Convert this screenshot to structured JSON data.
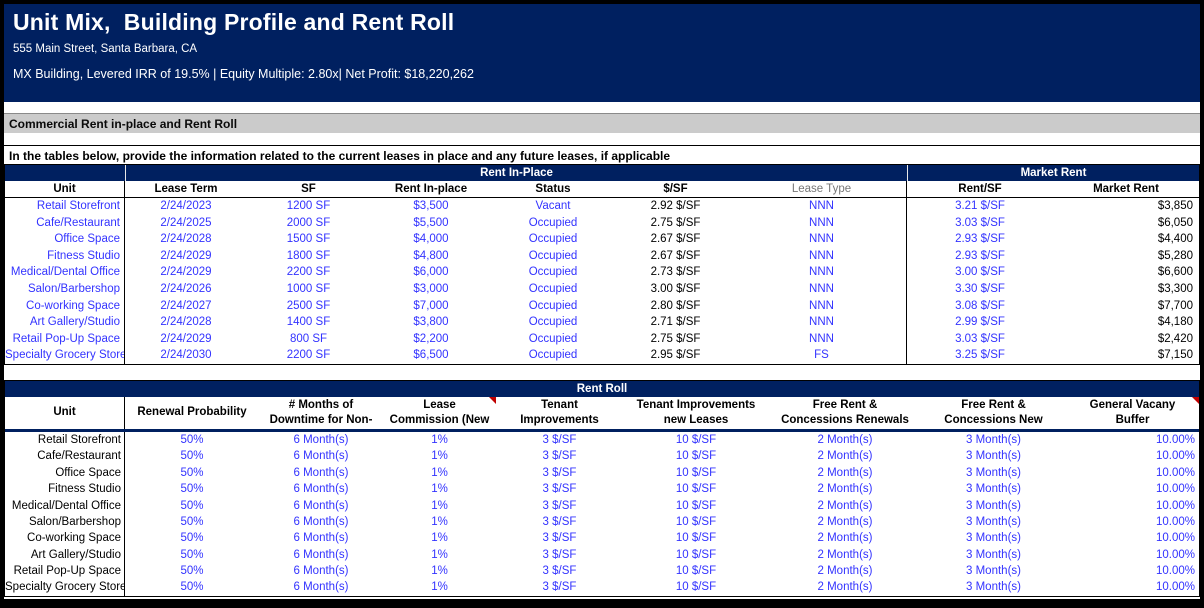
{
  "header": {
    "title": "Unit Mix,  Building Profile and Rent Roll",
    "address": "555 Main Street, Santa Barbara, CA",
    "summary": "MX Building, Levered IRR of 19.5% | Equity Multiple: 2.80x| Net Profit: $18,220,262"
  },
  "section_bar_label": "Commercial Rent in-place and Rent Roll",
  "instruction_text": "In the tables below, provide the information related to the current leases in place and any future leases, if applicable",
  "colors": {
    "navy": "#002060",
    "input_blue": "#3333ff",
    "section_gray": "#cbcbcb",
    "comment_red": "#c00000"
  },
  "rent_in_place_table": {
    "group_headers": [
      "",
      "Rent In-Place",
      "Market Rent"
    ],
    "columns": [
      "Unit",
      "Lease Term",
      "SF",
      "Rent In-place",
      "Status",
      "$/SF",
      "Lease Type",
      "Rent/SF",
      "Market Rent"
    ],
    "rows": [
      [
        "Retail Storefront",
        "2/24/2023",
        "1200 SF",
        "$3,500",
        "Vacant",
        "2.92 $/SF",
        "NNN",
        "3.21 $/SF",
        "$3,850"
      ],
      [
        "Cafe/Restaurant",
        "2/24/2025",
        "2000 SF",
        "$5,500",
        "Occupied",
        "2.75 $/SF",
        "NNN",
        "3.03 $/SF",
        "$6,050"
      ],
      [
        "Office Space",
        "2/24/2028",
        "1500 SF",
        "$4,000",
        "Occupied",
        "2.67 $/SF",
        "NNN",
        "2.93 $/SF",
        "$4,400"
      ],
      [
        "Fitness Studio",
        "2/24/2029",
        "1800 SF",
        "$4,800",
        "Occupied",
        "2.67 $/SF",
        "NNN",
        "2.93 $/SF",
        "$5,280"
      ],
      [
        "Medical/Dental Office",
        "2/24/2029",
        "2200 SF",
        "$6,000",
        "Occupied",
        "2.73 $/SF",
        "NNN",
        "3.00 $/SF",
        "$6,600"
      ],
      [
        "Salon/Barbershop",
        "2/24/2026",
        "1000 SF",
        "$3,000",
        "Occupied",
        "3.00 $/SF",
        "NNN",
        "3.30 $/SF",
        "$3,300"
      ],
      [
        "Co-working Space",
        "2/24/2027",
        "2500 SF",
        "$7,000",
        "Occupied",
        "2.80 $/SF",
        "NNN",
        "3.08 $/SF",
        "$7,700"
      ],
      [
        "Art Gallery/Studio",
        "2/24/2028",
        "1400 SF",
        "$3,800",
        "Occupied",
        "2.71 $/SF",
        "NNN",
        "2.99 $/SF",
        "$4,180"
      ],
      [
        "Retail Pop-Up Space",
        "2/24/2029",
        "800 SF",
        "$2,200",
        "Occupied",
        "2.75 $/SF",
        "NNN",
        "3.03 $/SF",
        "$2,420"
      ],
      [
        "Specialty Grocery Store",
        "2/24/2030",
        "2200 SF",
        "$6,500",
        "Occupied",
        "2.95 $/SF",
        "FS",
        "3.25 $/SF",
        "$7,150"
      ]
    ]
  },
  "rent_roll_table": {
    "group_header": "Rent Roll",
    "columns": [
      {
        "line1": "Unit",
        "line2": ""
      },
      {
        "line1": "Renewal Probability",
        "line2": ""
      },
      {
        "line1": "# Months of",
        "line2": "Downtime for Non-"
      },
      {
        "line1": "Lease",
        "line2": "Commission (New"
      },
      {
        "line1": "Tenant",
        "line2": "Improvements"
      },
      {
        "line1": "Tenant Improvements",
        "line2": "new Leases"
      },
      {
        "line1": "Free Rent &",
        "line2": "Concessions Renewals"
      },
      {
        "line1": "Free Rent &",
        "line2": "Concessions New"
      },
      {
        "line1": "General Vacany",
        "line2": "Buffer"
      }
    ],
    "rows": [
      [
        "Retail Storefront",
        "50%",
        "6 Month(s)",
        "1%",
        "3 $/SF",
        "10 $/SF",
        "2 Month(s)",
        "3 Month(s)",
        "10.00%"
      ],
      [
        "Cafe/Restaurant",
        "50%",
        "6 Month(s)",
        "1%",
        "3 $/SF",
        "10 $/SF",
        "2 Month(s)",
        "3 Month(s)",
        "10.00%"
      ],
      [
        "Office Space",
        "50%",
        "6 Month(s)",
        "1%",
        "3 $/SF",
        "10 $/SF",
        "2 Month(s)",
        "3 Month(s)",
        "10.00%"
      ],
      [
        "Fitness Studio",
        "50%",
        "6 Month(s)",
        "1%",
        "3 $/SF",
        "10 $/SF",
        "2 Month(s)",
        "3 Month(s)",
        "10.00%"
      ],
      [
        "Medical/Dental Office",
        "50%",
        "6 Month(s)",
        "1%",
        "3 $/SF",
        "10 $/SF",
        "2 Month(s)",
        "3 Month(s)",
        "10.00%"
      ],
      [
        "Salon/Barbershop",
        "50%",
        "6 Month(s)",
        "1%",
        "3 $/SF",
        "10 $/SF",
        "2 Month(s)",
        "3 Month(s)",
        "10.00%"
      ],
      [
        "Co-working Space",
        "50%",
        "6 Month(s)",
        "1%",
        "3 $/SF",
        "10 $/SF",
        "2 Month(s)",
        "3 Month(s)",
        "10.00%"
      ],
      [
        "Art Gallery/Studio",
        "50%",
        "6 Month(s)",
        "1%",
        "3 $/SF",
        "10 $/SF",
        "2 Month(s)",
        "3 Month(s)",
        "10.00%"
      ],
      [
        "Retail Pop-Up Space",
        "50%",
        "6 Month(s)",
        "1%",
        "3 $/SF",
        "10 $/SF",
        "2 Month(s)",
        "3 Month(s)",
        "10.00%"
      ],
      [
        "Specialty Grocery Store",
        "50%",
        "6 Month(s)",
        "1%",
        "3 $/SF",
        "10 $/SF",
        "2 Month(s)",
        "3 Month(s)",
        "10.00%"
      ]
    ]
  }
}
